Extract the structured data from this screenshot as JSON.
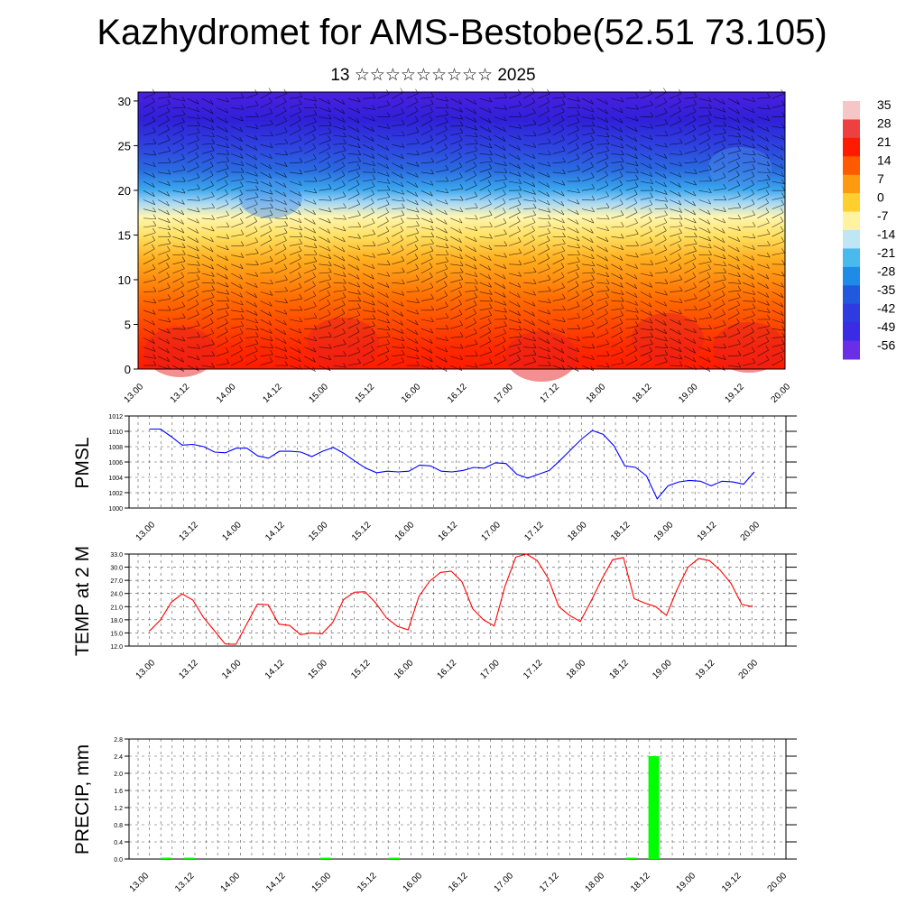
{
  "header": {
    "title": "Kazhydromet for AMS-Bestobe(52.51 73.105)",
    "subtitle": "13 ☆☆☆☆☆☆☆☆☆ 2025"
  },
  "chart_data": [
    {
      "type": "heatmap",
      "ylim": [
        0,
        31
      ],
      "yticks": [
        "0",
        "5",
        "10",
        "15",
        "20",
        "25",
        "30"
      ],
      "xticks": [
        "13.00",
        "13.12",
        "14.00",
        "14.12",
        "15.00",
        "15.12",
        "16.00",
        "16.12",
        "17.00",
        "17.12",
        "18.00",
        "18.12",
        "19.00",
        "19.12",
        "20.00"
      ],
      "colorbar": {
        "labels": [
          "35",
          "28",
          "21",
          "14",
          "7",
          "0",
          "-7",
          "-14",
          "-21",
          "-28",
          "-35",
          "-42",
          "-49",
          "-56"
        ],
        "colors": [
          "#f6c6c6",
          "#ee4040",
          "#ff1a00",
          "#ff5a00",
          "#ff9a10",
          "#ffcf30",
          "#fff3a0",
          "#bfe6f5",
          "#49b9ee",
          "#1e8be6",
          "#2258de",
          "#2d3be0",
          "#3a2ce4",
          "#6a2ee8"
        ]
      },
      "description_layers": "temperature colour field with wind barbs"
    },
    {
      "type": "line",
      "ylabel": "PMSL",
      "ylim": [
        1000,
        1012
      ],
      "yticks": [
        "1000",
        "1002",
        "1004",
        "1006",
        "1008",
        "1010",
        "1012"
      ],
      "xticks": [
        "13.00",
        "13.12",
        "14.00",
        "14.12",
        "15.00",
        "15.12",
        "16.00",
        "16.12",
        "17.00",
        "17.12",
        "18.00",
        "18.12",
        "19.00",
        "19.12",
        "20.00"
      ],
      "color": "#0000ff",
      "values": [
        1010.3,
        1010.3,
        1009.3,
        1008.2,
        1008.3,
        1008.0,
        1007.3,
        1007.2,
        1007.8,
        1007.8,
        1006.8,
        1006.5,
        1007.4,
        1007.4,
        1007.3,
        1006.7,
        1007.4,
        1007.9,
        1007.1,
        1006.1,
        1005.2,
        1004.6,
        1004.8,
        1004.7,
        1004.8,
        1005.6,
        1005.5,
        1004.8,
        1004.7,
        1004.9,
        1005.3,
        1005.2,
        1005.9,
        1005.8,
        1004.4,
        1003.9,
        1004.4,
        1004.9,
        1006.2,
        1007.6,
        1009.0,
        1010.1,
        1009.6,
        1008.1,
        1005.5,
        1005.3,
        1004.2,
        1001.2,
        1002.9,
        1003.4,
        1003.6,
        1003.5,
        1002.9,
        1003.5,
        1003.4,
        1003.1,
        1004.7
      ]
    },
    {
      "type": "line",
      "ylabel": "TEMP at 2 M",
      "ylim": [
        12,
        33
      ],
      "yticks": [
        "12.0",
        "15.0",
        "18.0",
        "21.0",
        "24.0",
        "27.0",
        "30.0",
        "33.0"
      ],
      "xticks": [
        "13.00",
        "13.12",
        "14.00",
        "14.12",
        "15.00",
        "15.12",
        "16.00",
        "16.12",
        "17.00",
        "17.12",
        "18.00",
        "18.12",
        "19.00",
        "19.12",
        "20.00"
      ],
      "color": "#ff0000",
      "values": [
        15.5,
        18.0,
        22.0,
        23.9,
        22.5,
        18.5,
        15.5,
        12.5,
        12.4,
        17.0,
        21.6,
        21.4,
        17.0,
        16.7,
        14.6,
        15.0,
        14.8,
        17.4,
        22.6,
        24.3,
        24.4,
        21.8,
        18.4,
        16.5,
        15.7,
        23.3,
        26.8,
        28.8,
        29.1,
        26.7,
        20.5,
        18.0,
        16.6,
        25.6,
        32.3,
        33.0,
        31.5,
        27.5,
        21.0,
        19.0,
        17.6,
        22.3,
        27.3,
        31.7,
        32.2,
        22.8,
        21.8,
        21.0,
        19.0,
        25.0,
        30.0,
        32.0,
        31.5,
        29.3,
        26.3,
        21.5,
        21.0
      ]
    },
    {
      "type": "bar",
      "ylabel": "PRECIP, mm",
      "ylim": [
        0,
        2.8
      ],
      "yticks": [
        "0.0",
        "0.4",
        "0.8",
        "1.2",
        "1.6",
        "2.0",
        "2.4",
        "2.8"
      ],
      "xticks": [
        "13.00",
        "13.12",
        "14.00",
        "14.12",
        "15.00",
        "15.12",
        "16.00",
        "16.12",
        "17.00",
        "17.12",
        "18.00",
        "18.12",
        "19.00",
        "19.12",
        "20.00"
      ],
      "color": "#00ff00",
      "bars": [
        {
          "t": 0.5,
          "value": 0.01
        },
        {
          "t": 1.0,
          "value": 0.01
        },
        {
          "t": 4.0,
          "value": 0.01
        },
        {
          "t": 5.5,
          "value": 0.03
        },
        {
          "t": 10.7,
          "value": 0.03
        },
        {
          "t": 11.2,
          "value": 2.4
        }
      ]
    }
  ]
}
